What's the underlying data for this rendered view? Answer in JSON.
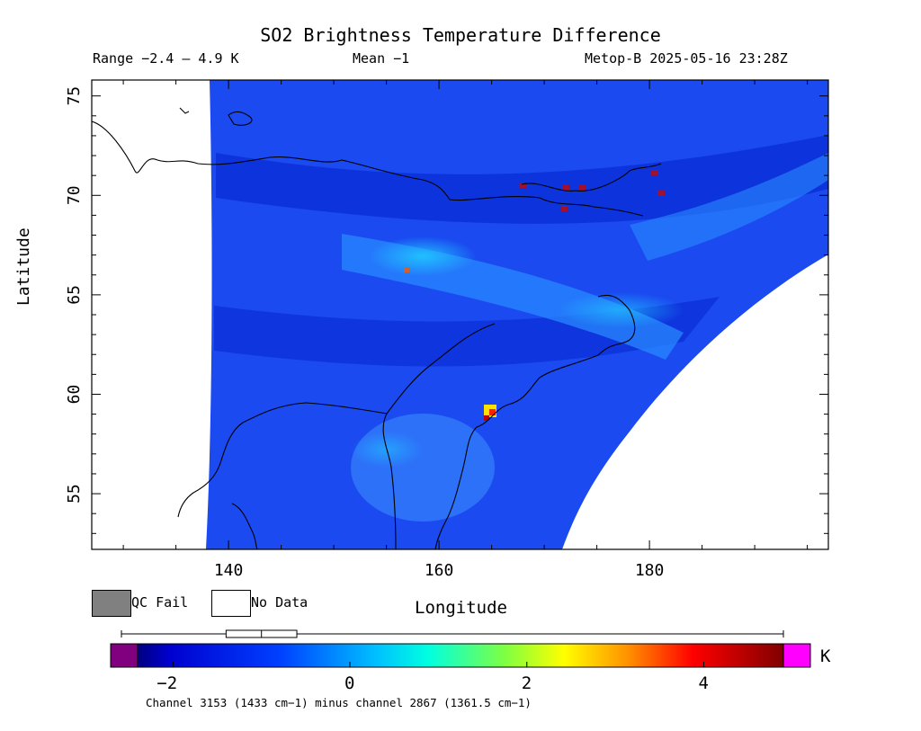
{
  "header": {
    "title": "SO2 Brightness Temperature Difference",
    "range_label": "Range −2.4 – 4.9 K",
    "mean_label": "Mean −1",
    "satellite_label": "Metop-B 2025-05-16 23:28Z"
  },
  "axes": {
    "y_title": "Latitude",
    "x_title": "Longitude",
    "lat_ticks": [
      "75",
      "70",
      "65",
      "60",
      "55"
    ],
    "lon_ticks": [
      "140",
      "160",
      "180"
    ],
    "lat_range": [
      52.2,
      75.8
    ],
    "lon_range": [
      127.0,
      197.0
    ]
  },
  "legend": {
    "qc_fail": "QC Fail",
    "no_data": "No Data",
    "qc_fail_color": "#808080",
    "no_data_color": "#ffffff"
  },
  "colorbar": {
    "unit": "K",
    "tick_labels": [
      "−2",
      "0",
      "2",
      "4"
    ],
    "tick_values": [
      -2,
      0,
      2,
      4
    ],
    "min": -2.4,
    "max": 4.9,
    "under_color": "#800080",
    "over_color": "#ff00ff",
    "box_whisker": {
      "min": -2.4,
      "q1": -1.4,
      "median": -1.0,
      "q3": -0.6,
      "max": 4.9
    }
  },
  "footnote": "Channel 3153 (1433 cm−1) minus channel 2867 (1361.5 cm−1)",
  "map": {
    "background_field": "mostly -1 to -2 K (blue)",
    "hotspot": {
      "lon": 165.5,
      "lat": 58.8,
      "value_k": 4.9
    }
  }
}
